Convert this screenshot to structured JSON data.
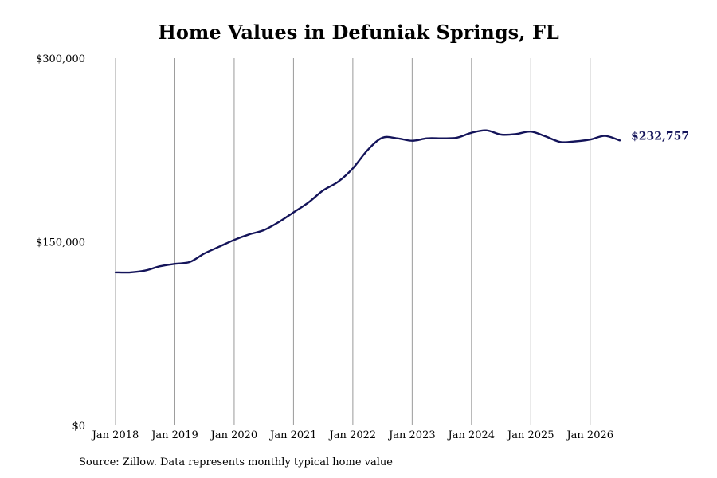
{
  "chart_data": {
    "type": "line",
    "title": "Home Values in Defuniak Springs, FL",
    "xlabel": "",
    "ylabel": "",
    "ylim": [
      0,
      300000
    ],
    "y_ticks": [
      "$0",
      "$150,000",
      "$300,000"
    ],
    "y_tick_values": [
      0,
      150000,
      300000
    ],
    "x_ticks": [
      "Jan 2018",
      "Jan 2019",
      "Jan 2020",
      "Jan 2021",
      "Jan 2022",
      "Jan 2023",
      "Jan 2024",
      "Jan 2025",
      "Jan 2026"
    ],
    "xlim": [
      "2018-01",
      "2026-07"
    ],
    "grid": "vertical",
    "series": [
      {
        "color": "#14145a",
        "end_label": "$232,757",
        "x": [
          "2018-01",
          "2018-04",
          "2018-07",
          "2018-10",
          "2019-01",
          "2019-04",
          "2019-07",
          "2019-10",
          "2020-01",
          "2020-04",
          "2020-07",
          "2020-10",
          "2021-01",
          "2021-04",
          "2021-07",
          "2021-10",
          "2022-01",
          "2022-04",
          "2022-07",
          "2022-10",
          "2023-01",
          "2023-04",
          "2023-07",
          "2023-10",
          "2024-01",
          "2024-04",
          "2024-07",
          "2024-10",
          "2025-01",
          "2025-04",
          "2025-07",
          "2025-10",
          "2026-01",
          "2026-04",
          "2026-07"
        ],
        "values": [
          125000,
          125000,
          126500,
          130000,
          132000,
          133500,
          140500,
          146000,
          151500,
          156000,
          159500,
          166000,
          174000,
          182000,
          192000,
          199000,
          210000,
          225000,
          235000,
          234500,
          232500,
          234500,
          234500,
          235000,
          239000,
          241000,
          237500,
          238000,
          240000,
          236000,
          231500,
          232000,
          233500,
          236500,
          232757
        ]
      }
    ]
  },
  "source_note": "Source: Zillow. Data represents monthly typical home value"
}
